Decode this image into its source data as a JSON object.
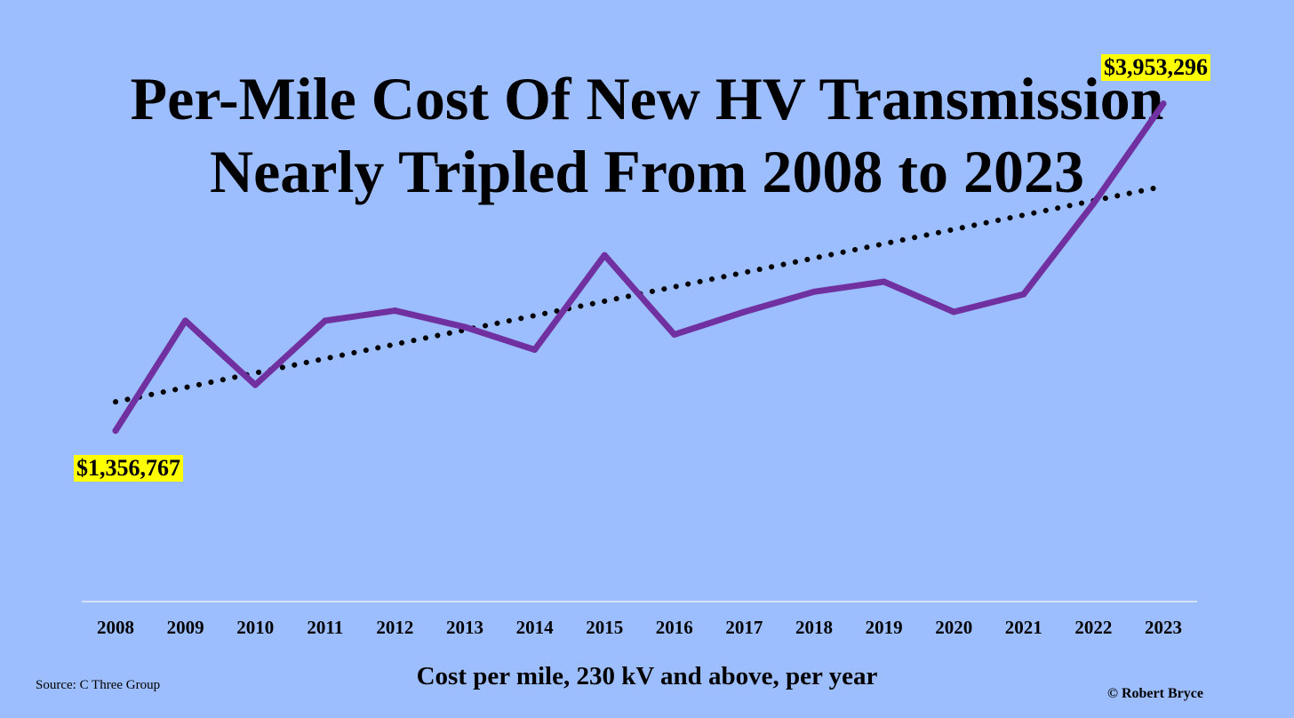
{
  "chart_data": {
    "type": "line",
    "title": "Per-Mile Cost Of New HV Transmission Nearly Tripled From 2008 to 2023",
    "title_lines": [
      "Per-Mile Cost Of New HV Transmission",
      "Nearly Tripled From 2008 to 2023"
    ],
    "xlabel": "Cost per mile, 230 kV and above, per year",
    "ylabel": "",
    "categories": [
      "2008",
      "2009",
      "2010",
      "2011",
      "2012",
      "2013",
      "2014",
      "2015",
      "2016",
      "2017",
      "2018",
      "2019",
      "2020",
      "2021",
      "2022",
      "2023"
    ],
    "series": [
      {
        "values": [
          1356767,
          2230000,
          1720000,
          2230000,
          2310000,
          2180000,
          2000000,
          2750000,
          2120000,
          2300000,
          2460000,
          2540000,
          2300000,
          2440000,
          3160000,
          3953296
        ],
        "color": "#7030a0",
        "style": "solid"
      },
      {
        "trendline": true,
        "values": [
          1586000,
          1700000,
          1815000,
          1929000,
          2043000,
          2157000,
          2271000,
          2385000,
          2499000,
          2613000,
          2727000,
          2841000,
          2955000,
          3069000,
          3183000,
          3297000
        ],
        "color": "#000000",
        "style": "dotted"
      }
    ],
    "annotations": [
      {
        "text": "$1,356,767",
        "category": "2008",
        "value": 1356767,
        "highlight": "#ffff00"
      },
      {
        "text": "$3,953,296",
        "category": "2023",
        "value": 3953296,
        "highlight": "#ffff00"
      }
    ],
    "ylim": [
      0,
      4600000
    ],
    "grid": false,
    "legend": "none",
    "yaxis_visible": false
  },
  "footer": {
    "source": "Source: C Three Group",
    "credit": "© Robert Bryce"
  },
  "colors": {
    "background": "#9dbefe",
    "axis": "#e8eeff"
  }
}
